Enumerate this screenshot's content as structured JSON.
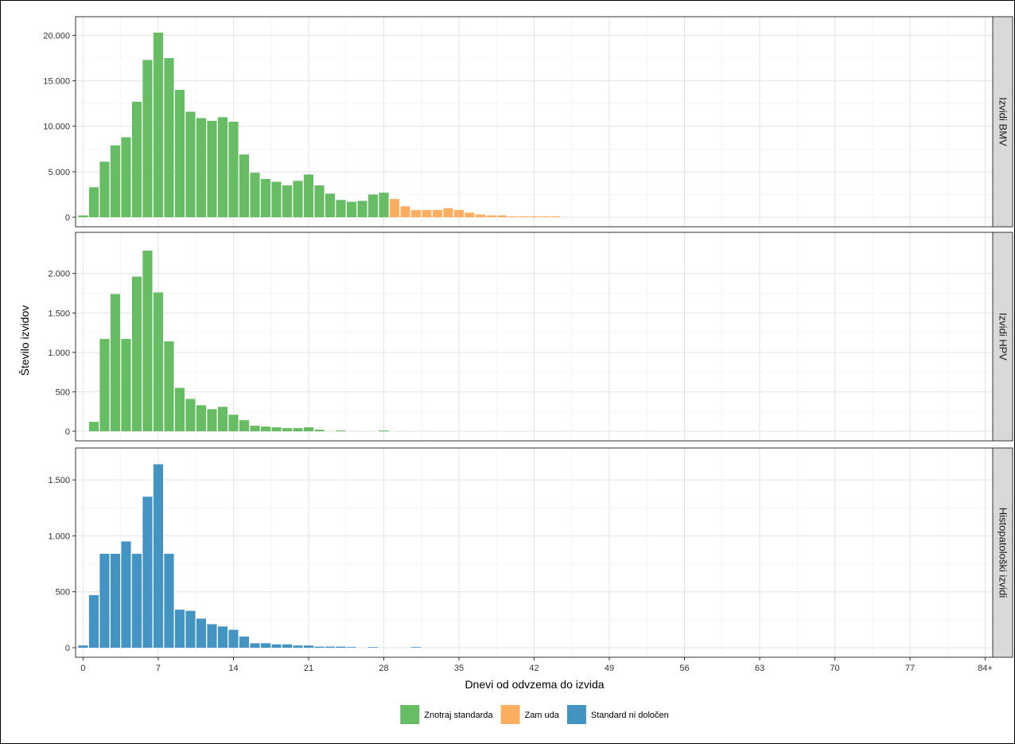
{
  "chart_data": {
    "type": "bar",
    "title": "",
    "xlabel": "Dnevi od odvzema do izvida",
    "ylabel": "Število izvidov",
    "x_ticks": [
      "0",
      "7",
      "14",
      "21",
      "28",
      "35",
      "42",
      "49",
      "56",
      "63",
      "70",
      "77",
      "84+"
    ],
    "x_tick_days": [
      0,
      7,
      14,
      21,
      28,
      35,
      42,
      49,
      56,
      63,
      70,
      77,
      84
    ],
    "xlim": [
      -0.7,
      84.7
    ],
    "grid": true,
    "legend_position": "bottom",
    "legend": [
      {
        "key": "znotraj",
        "label": "Znotraj standarda",
        "color": "#66BD63"
      },
      {
        "key": "zamuda",
        "label": "Zam uda",
        "color": "#FDAE61"
      },
      {
        "key": "nedoloceno",
        "label": "Standard ni določen",
        "color": "#4393C3"
      }
    ],
    "panels": [
      {
        "strip": "Izvidi BMV",
        "ylim": [
          0,
          21000
        ],
        "y_ticks": [
          0,
          5000,
          10000,
          15000,
          20000
        ],
        "y_tick_labels": [
          "0",
          "5.000",
          "10.000",
          "15.000",
          "20.000"
        ],
        "series": [
          {
            "category": "znotraj",
            "x": [
              0,
              1,
              2,
              3,
              4,
              5,
              6,
              7,
              8,
              9,
              10,
              11,
              12,
              13,
              14,
              15,
              16,
              17,
              18,
              19,
              20,
              21,
              22,
              23,
              24,
              25,
              26,
              27,
              28
            ],
            "values": [
              200,
              3300,
              6100,
              7900,
              8800,
              12700,
              17300,
              20300,
              17500,
              14000,
              11600,
              10900,
              10600,
              11000,
              10500,
              6900,
              4900,
              4200,
              3900,
              3500,
              4000,
              4700,
              3500,
              2600,
              1900,
              1700,
              1800,
              2500,
              2700
            ]
          },
          {
            "category": "zamuda",
            "x": [
              29,
              30,
              31,
              32,
              33,
              34,
              35,
              36,
              37,
              38,
              39,
              40,
              41,
              42,
              43,
              44
            ],
            "values": [
              2000,
              1200,
              800,
              800,
              800,
              1000,
              800,
              500,
              300,
              200,
              200,
              100,
              100,
              100,
              100,
              100
            ]
          }
        ]
      },
      {
        "strip": "Izvidi HPV",
        "ylim": [
          0,
          2400
        ],
        "y_ticks": [
          0,
          500,
          1000,
          1500,
          2000
        ],
        "y_tick_labels": [
          "0",
          "500",
          "1.000",
          "1.500",
          "2.000"
        ],
        "series": [
          {
            "category": "znotraj",
            "x": [
              1,
              2,
              3,
              4,
              5,
              6,
              7,
              8,
              9,
              10,
              11,
              12,
              13,
              14,
              15,
              16,
              17,
              18,
              19,
              20,
              21,
              22,
              24,
              28
            ],
            "values": [
              120,
              1170,
              1740,
              1170,
              1960,
              2290,
              1760,
              1140,
              550,
              410,
              330,
              280,
              310,
              210,
              140,
              70,
              60,
              50,
              40,
              40,
              50,
              20,
              10,
              10
            ]
          }
        ]
      },
      {
        "strip": "Histopatološki izvidi",
        "ylim": [
          0,
          1700
        ],
        "y_ticks": [
          0,
          500,
          1000,
          1500
        ],
        "y_tick_labels": [
          "0",
          "500",
          "1.000",
          "1.500"
        ],
        "series": [
          {
            "category": "nedoloceno",
            "x": [
              0,
              1,
              2,
              3,
              4,
              5,
              6,
              7,
              8,
              9,
              10,
              11,
              12,
              13,
              14,
              15,
              16,
              17,
              18,
              19,
              20,
              21,
              22,
              23,
              24,
              25,
              27,
              31
            ],
            "values": [
              20,
              470,
              840,
              840,
              950,
              840,
              1350,
              1640,
              840,
              340,
              330,
              260,
              210,
              190,
              160,
              100,
              40,
              40,
              30,
              30,
              20,
              20,
              10,
              10,
              10,
              5,
              5,
              5
            ]
          }
        ]
      }
    ]
  }
}
